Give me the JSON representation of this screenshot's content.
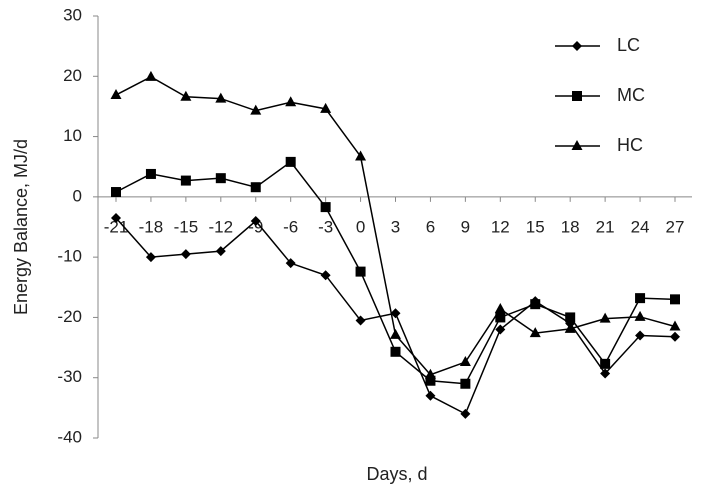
{
  "chart_data": {
    "type": "line",
    "y_label": "Energy Balance, MJ/d",
    "x_label": "Days, d",
    "categories": [
      -21,
      -18,
      -15,
      -12,
      -9,
      -6,
      -3,
      0,
      3,
      6,
      9,
      12,
      15,
      18,
      21,
      24,
      27
    ],
    "series": [
      {
        "name": "LC",
        "color": "#000000",
        "marker": "diamond",
        "values": [
          -3.5,
          -10,
          -9.5,
          -9,
          -4,
          -11,
          -13,
          -20.5,
          -19.3,
          -33,
          -36,
          -22,
          -17.3,
          -21,
          -29.3,
          -23,
          -23.2
        ]
      },
      {
        "name": "MC",
        "color": "#000000",
        "marker": "square",
        "values": [
          0.8,
          3.8,
          2.7,
          3.1,
          1.6,
          5.8,
          -1.7,
          -12.4,
          -25.7,
          -30.5,
          -31,
          -20,
          -17.8,
          -20,
          -27.7,
          -16.8,
          -17
        ]
      },
      {
        "name": "HC",
        "color": "#000000",
        "marker": "triangle",
        "values": [
          16.9,
          19.9,
          16.6,
          16.3,
          14.3,
          15.7,
          14.6,
          6.7,
          -22.9,
          -29.5,
          -27.4,
          -18.6,
          -22.6,
          -21.9,
          -20.2,
          -19.9,
          -21.5
        ]
      }
    ],
    "ylim": [
      -40,
      30
    ],
    "yticks": [
      -40,
      -30,
      -20,
      -10,
      0,
      10,
      20,
      30
    ],
    "grid": false,
    "legend": "top-right"
  }
}
